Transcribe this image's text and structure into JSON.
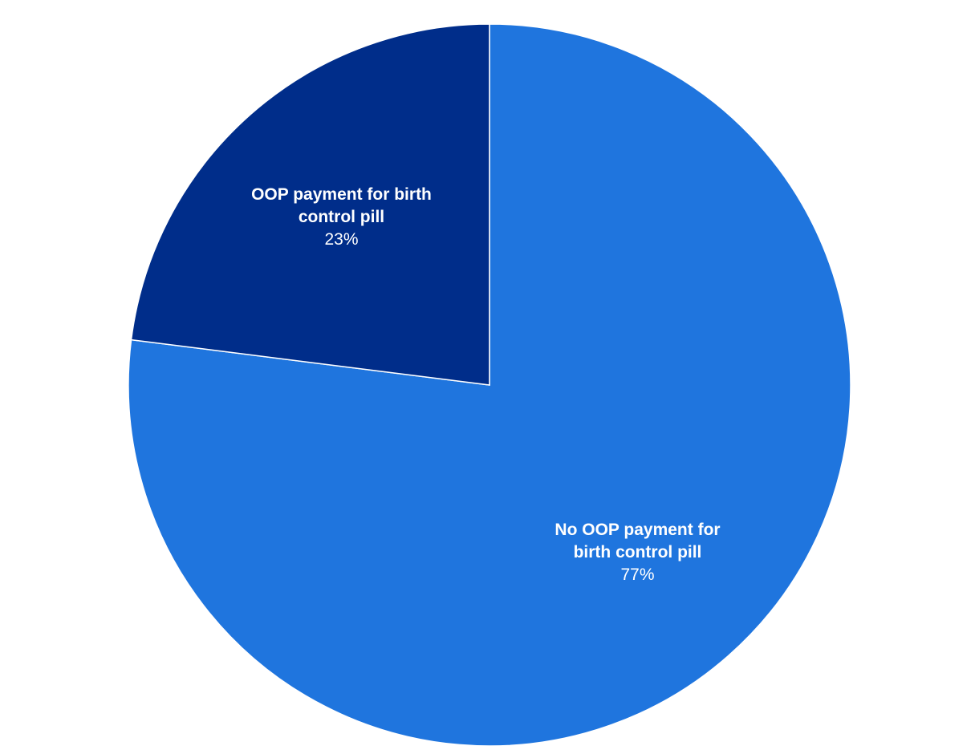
{
  "chart_data": {
    "type": "pie",
    "categories": [
      "No OOP payment for birth control pill",
      "OOP payment for birth control pill"
    ],
    "values": [
      77,
      23
    ],
    "value_labels": [
      "77%",
      "23%"
    ],
    "colors": [
      "#1f75de",
      "#002d8a"
    ]
  }
}
